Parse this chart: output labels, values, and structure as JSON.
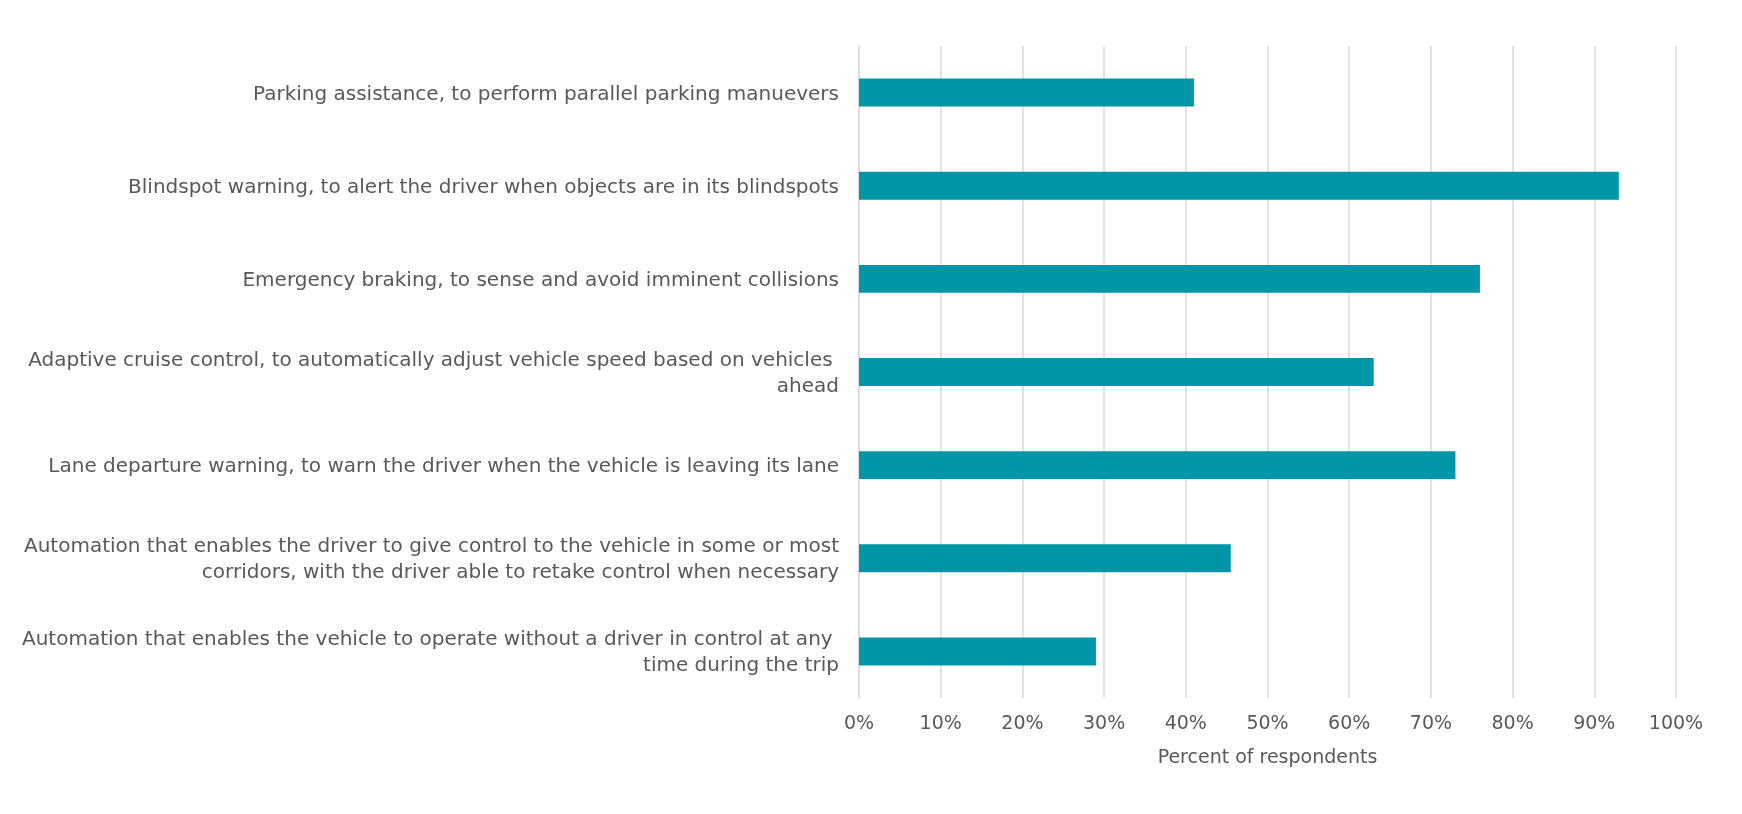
{
  "chart_data": {
    "type": "bar",
    "orientation": "horizontal",
    "xlabel": "Percent of respondents",
    "categories": [
      "Parking assistance, to perform parallel parking manuevers",
      "Blindspot warning, to alert the driver when objects are in its blindspots",
      "Emergency braking, to sense and avoid imminent collisions",
      "Adaptive cruise control, to automatically adjust vehicle speed based on vehicles ahead",
      "Lane departure warning, to warn the driver when the vehicle is leaving its lane",
      "Automation that enables the driver to give control to the vehicle in some or most corridors, with the driver able to retake control when necessary",
      "Automation that enables the vehicle to operate without a driver in control at any time during the trip"
    ],
    "values": [
      41,
      93,
      76,
      63,
      73,
      45.5,
      29
    ],
    "color": "#0096a8",
    "xlim": [
      0,
      100
    ],
    "xticks": [
      {
        "value": 0,
        "label": "0%"
      },
      {
        "value": 10,
        "label": "10%"
      },
      {
        "value": 20,
        "label": "20%"
      },
      {
        "value": 30,
        "label": "30%"
      },
      {
        "value": 40,
        "label": "40%"
      },
      {
        "value": 50,
        "label": "50%"
      },
      {
        "value": 60,
        "label": "60%"
      },
      {
        "value": 70,
        "label": "70%"
      },
      {
        "value": 80,
        "label": "80%"
      },
      {
        "value": 90,
        "label": "90%"
      },
      {
        "value": 100,
        "label": "100%"
      }
    ],
    "grid": "x"
  }
}
